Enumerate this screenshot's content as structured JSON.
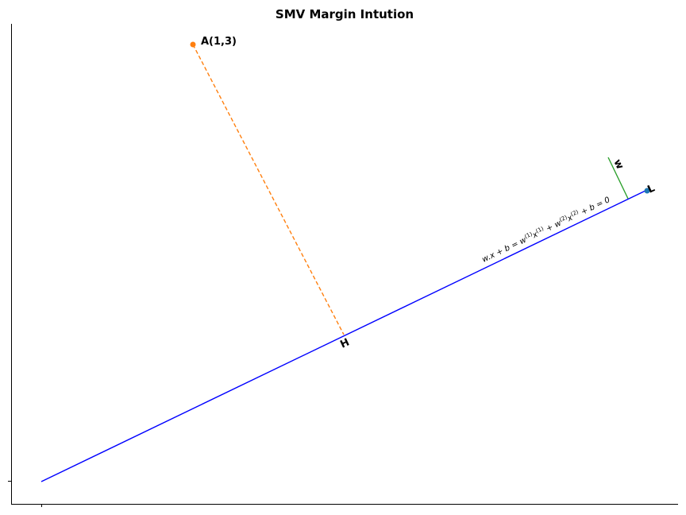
{
  "figure": {
    "title": "SMV Margin Intution"
  },
  "colors": {
    "hyperplane": "#0000ff",
    "projection": "#ff7f0e",
    "point_a": "#ff7f0e",
    "point_l": "#1f77b4",
    "normal_vector": "#2ca02c",
    "axes": "#000000"
  },
  "chart_data": {
    "type": "diagram",
    "points": [
      {
        "id": "A",
        "label": "A(1,3)",
        "color": "#ff7f0e"
      },
      {
        "id": "L",
        "label": "L",
        "color": "#1f77b4"
      },
      {
        "id": "H",
        "label": "H"
      }
    ],
    "lines": [
      {
        "id": "hyperplane",
        "style": "solid",
        "color": "#0000ff"
      },
      {
        "id": "projection-A-H",
        "style": "dashed",
        "color": "#ff7f0e"
      },
      {
        "id": "normal-w",
        "style": "solid",
        "color": "#2ca02c",
        "label": "w"
      }
    ],
    "equation": {
      "lhs": "w.x + b = w",
      "sup1": "(1)",
      "mid1": "x",
      "sup2": "(1)",
      "mid2": " + w",
      "sup3": "(2)",
      "mid3": "x",
      "sup4": "(2)",
      "rhs": " + b = 0"
    },
    "xticks": [
      ""
    ],
    "yticks": [
      ""
    ]
  }
}
